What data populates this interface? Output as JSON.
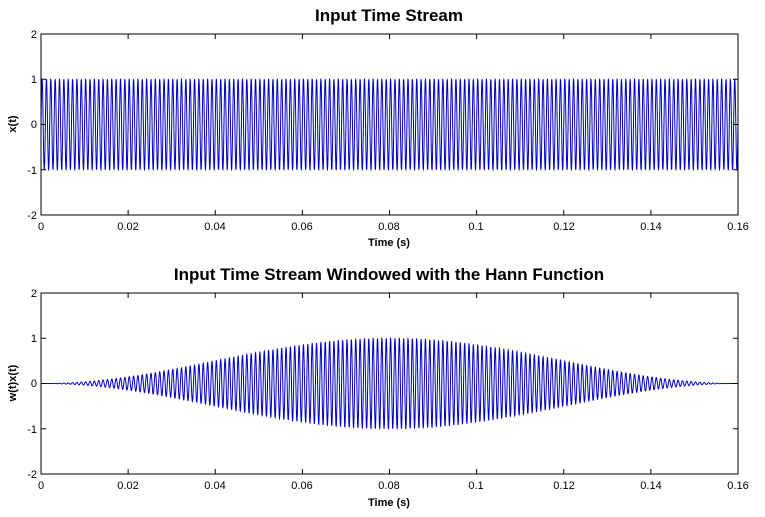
{
  "chart_data": [
    {
      "type": "line",
      "title": "Input Time Stream",
      "xlabel": "Time (s)",
      "ylabel": "x(t)",
      "xlim": [
        0,
        0.16
      ],
      "ylim": [
        -2,
        2
      ],
      "xticks": [
        "0",
        "0.02",
        "0.04",
        "0.06",
        "0.08",
        "0.1",
        "0.12",
        "0.14",
        "0.16"
      ],
      "yticks": [
        "-2",
        "-1",
        "0",
        "1",
        "2"
      ],
      "color": "#0000cc",
      "signal": {
        "function": "sine",
        "amplitude": 1,
        "frequency_hz": 1000,
        "window": "none"
      }
    },
    {
      "type": "line",
      "title": "Input Time Stream Windowed with the Hann Function",
      "xlabel": "Time (s)",
      "ylabel": "w(t)x(t)",
      "xlim": [
        0,
        0.16
      ],
      "ylim": [
        -2,
        2
      ],
      "xticks": [
        "0",
        "0.02",
        "0.04",
        "0.06",
        "0.08",
        "0.1",
        "0.12",
        "0.14",
        "0.16"
      ],
      "yticks": [
        "-2",
        "-1",
        "0",
        "1",
        "2"
      ],
      "color": "#0000cc",
      "signal": {
        "function": "sine",
        "amplitude": 1,
        "frequency_hz": 1000,
        "window": "hann"
      }
    }
  ]
}
